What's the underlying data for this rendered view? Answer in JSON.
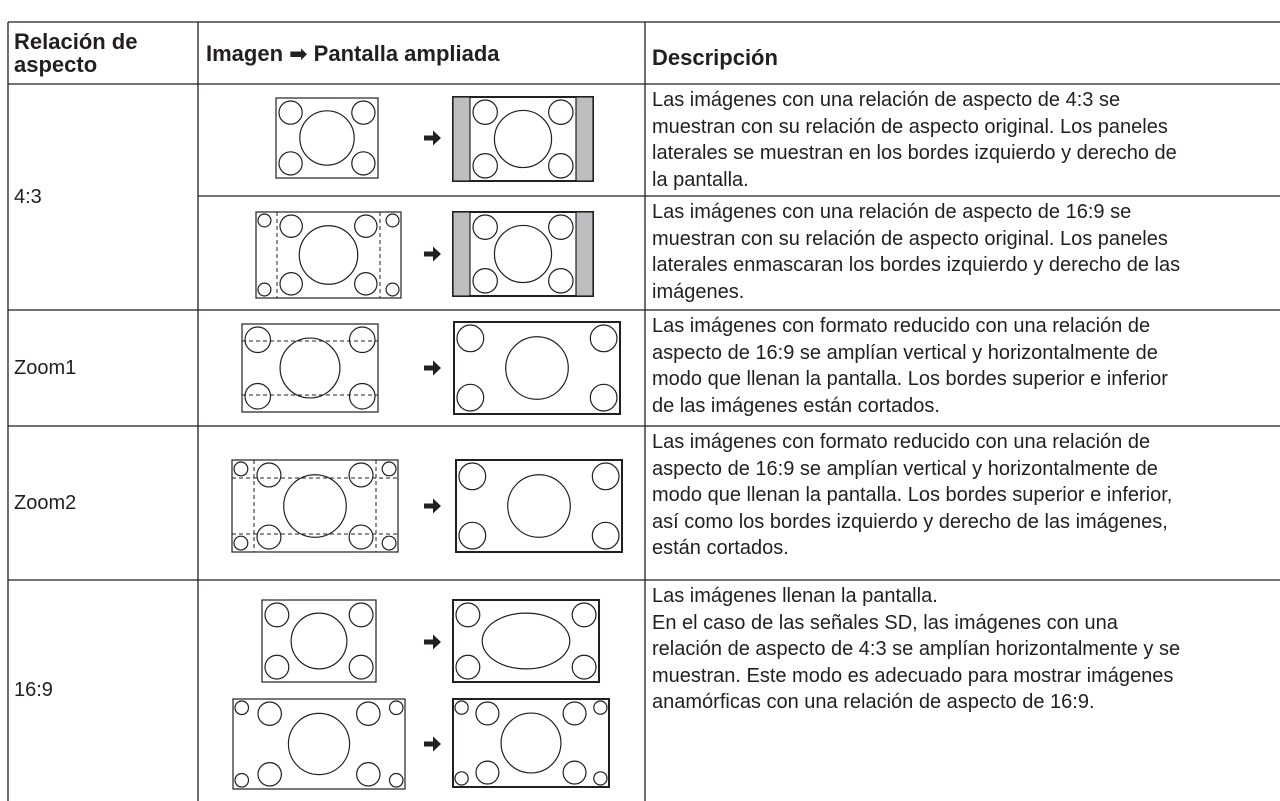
{
  "header": {
    "columns": [
      "Relación de aspecto",
      "Imagen ➡ Pantalla ampliada",
      "Descripción"
    ]
  },
  "rows": [
    {
      "aspect": "4:3",
      "descriptions": [
        [
          "Las imágenes con una relación de aspecto de 4:3 se",
          "muestran con su relación de aspecto original. Los paneles",
          "laterales se muestran en los bordes izquierdo y derecho de",
          "la pantalla."
        ],
        [
          "Las imágenes con una relación de aspecto de 16:9 se",
          "muestran con su relación de aspecto original. Los paneles",
          "laterales enmascaran los bordes izquierdo y derecho de las",
          "imágenes."
        ]
      ]
    },
    {
      "aspect": "Zoom1",
      "descriptions": [
        [
          "Las imágenes con formato reducido con una relación de",
          "aspecto de 16:9 se amplían vertical y horizontalmente de",
          "modo que llenan la pantalla. Los bordes superior e inferior",
          "de las imágenes están cortados."
        ]
      ]
    },
    {
      "aspect": "Zoom2",
      "descriptions": [
        [
          "Las imágenes con formato reducido con una relación de",
          "aspecto de 16:9 se amplían vertical y horizontalmente de",
          "modo que llenan la pantalla. Los bordes superior e inferior,",
          "así como los bordes izquierdo y derecho de las imágenes,",
          "están cortados."
        ]
      ]
    },
    {
      "aspect": "16:9",
      "descriptions": [
        [
          "Las imágenes llenan la pantalla.",
          "En el caso de las señales SD, las imágenes con una",
          "relación de aspecto de 4:3 se amplían horizontalmente y se",
          "muestran. Este modo es adecuado para mostrar imágenes",
          "anamórficas con una relación de aspecto de 16:9."
        ]
      ]
    }
  ]
}
